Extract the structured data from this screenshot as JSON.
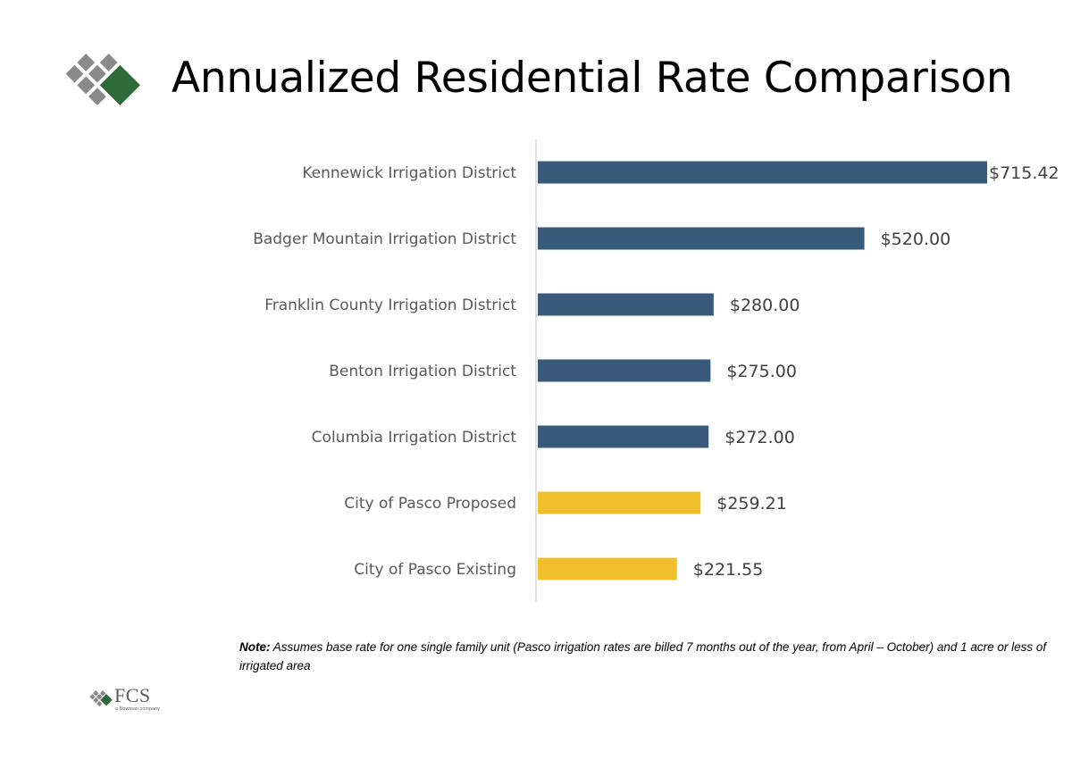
{
  "header": {
    "title": "Annualized Residential Rate Comparison",
    "logo_icon": "fcs-diamond-logo-icon"
  },
  "chart_data": {
    "type": "bar",
    "orientation": "horizontal",
    "categories": [
      "Kennewick Irrigation District",
      "Badger Mountain Irrigation District",
      "Franklin County Irrigation District",
      "Benton Irrigation District",
      "Columbia Irrigation District",
      "City of Pasco Proposed",
      "City of Pasco Existing"
    ],
    "values": [
      715.42,
      520.0,
      280.0,
      275.0,
      272.0,
      259.21,
      221.55
    ],
    "value_labels": [
      "$715.42",
      "$520.00",
      "$280.00",
      "$275.00",
      "$272.00",
      "$259.21",
      "$221.55"
    ],
    "bar_colors": [
      "#3a5a7c",
      "#3a5a7c",
      "#3a5a7c",
      "#3a5a7c",
      "#3a5a7c",
      "#f0c02c",
      "#f0c02c"
    ],
    "xlim": [
      0,
      715.42
    ],
    "grid": false,
    "legend": "none"
  },
  "note": {
    "label": "Note:",
    "text": " Assumes base rate for one single family unit (Pasco irrigation rates are billed 7 months out of the year, from April – October) and 1 acre or less of irrigated area"
  },
  "footer": {
    "logo_text": "FCS",
    "logo_subtext": "a Bowman company",
    "logo_icon": "fcs-small-diamond-logo-icon"
  }
}
